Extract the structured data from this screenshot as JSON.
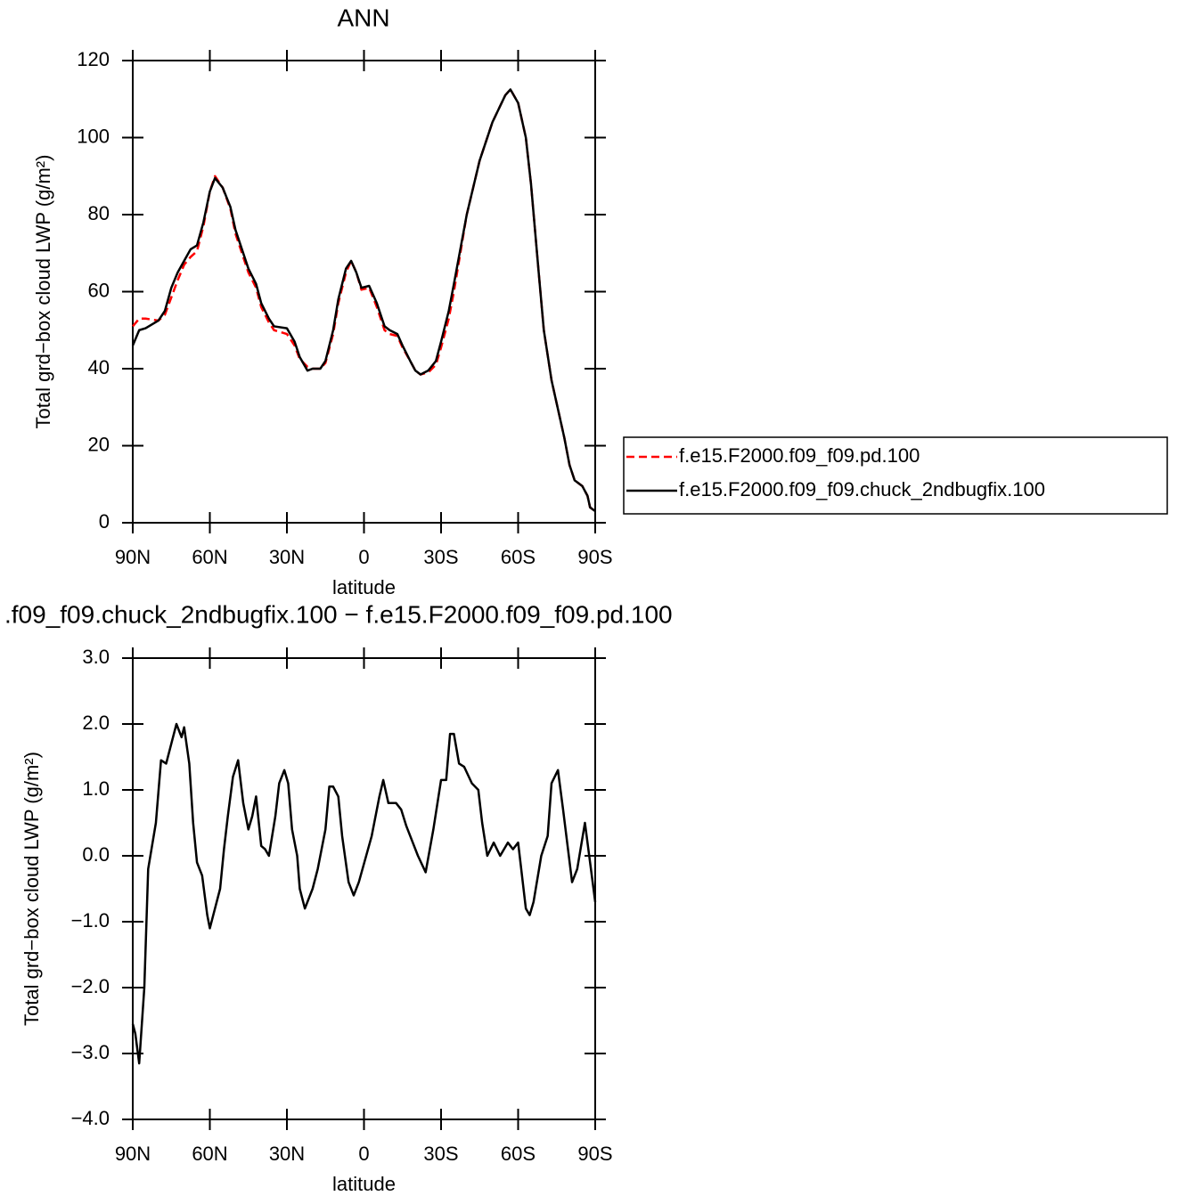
{
  "chart_data": [
    {
      "type": "line",
      "title": "ANN",
      "x_label": "latitude",
      "y_label": "Total grd−box cloud LWP (g/m²)",
      "x": [
        90,
        87.5,
        85,
        80,
        77.5,
        75,
        72.5,
        70,
        67.5,
        65,
        62.5,
        60,
        58,
        55,
        52,
        50,
        45,
        42,
        40,
        37,
        35,
        30,
        27,
        25,
        22,
        20,
        17,
        15,
        12,
        10,
        7,
        5,
        3,
        1,
        -2,
        -5,
        -8,
        -10,
        -13,
        -15,
        -18,
        -20,
        -22,
        -25,
        -28,
        -30,
        -33,
        -35,
        -40,
        -45,
        -50,
        -55,
        -57,
        -60,
        -63,
        -65,
        -68,
        -70,
        -73,
        -75,
        -78,
        -80,
        -82,
        -85,
        -87,
        -88,
        -90
      ],
      "series": [
        {
          "name": "f.e15.F2000.f09_f09.pd.100",
          "color": "#ff0000",
          "dashed": true,
          "values": [
            51,
            53,
            53,
            52.5,
            54,
            58.5,
            63,
            67,
            69,
            70.5,
            77,
            86,
            90,
            87,
            81.5,
            75,
            65,
            61,
            56,
            52,
            50,
            49,
            46,
            42.5,
            40.5,
            40,
            40,
            41.5,
            49,
            57,
            65,
            68,
            65,
            60.5,
            61,
            56,
            50,
            49,
            48.5,
            45.5,
            42,
            39.5,
            38.5,
            39,
            41,
            45.5,
            53,
            60,
            80,
            94,
            104,
            111,
            112.5,
            109,
            100,
            88,
            65,
            50,
            37,
            31,
            22,
            15,
            11,
            9.5,
            7,
            4,
            3
          ]
        },
        {
          "name": "f.e15.F2000.f09_f09.chuck_2ndbugfix.100",
          "color": "#000000",
          "dashed": false,
          "values": [
            46,
            50,
            50.5,
            52.5,
            55,
            61,
            65,
            68,
            71,
            72,
            78,
            86,
            89.5,
            87,
            82,
            76,
            66,
            62,
            57,
            53,
            51,
            50.5,
            47,
            43,
            39.5,
            40,
            40,
            42,
            50,
            58,
            66,
            68,
            65,
            61,
            61.5,
            57,
            51,
            50,
            49,
            46,
            42,
            39.5,
            38.5,
            39.5,
            42,
            47,
            55,
            62,
            80,
            94,
            104,
            111,
            112.5,
            109,
            100,
            88,
            65,
            50,
            37,
            31,
            22,
            15,
            11,
            9.5,
            7,
            4,
            3
          ]
        }
      ],
      "xlim": [
        90,
        -90
      ],
      "xticks": [
        {
          "value": 90,
          "label": "90N"
        },
        {
          "value": 60,
          "label": "60N"
        },
        {
          "value": 30,
          "label": "30N"
        },
        0,
        {
          "value": -30,
          "label": "30S"
        },
        {
          "value": -60,
          "label": "60S"
        },
        {
          "value": -90,
          "label": "90S"
        }
      ],
      "ylim": [
        0,
        120
      ],
      "yticks": [
        0,
        20,
        40,
        60,
        80,
        100,
        120
      ]
    },
    {
      "type": "line",
      "title": ".f09_f09.chuck_2ndbugfix.100 − f.e15.F2000.f09_f09.pd.100",
      "x_label": "latitude",
      "y_label": "Total grd−box cloud LWP (g/m²)",
      "x": [
        90,
        89,
        87.5,
        85.5,
        84,
        81,
        79,
        77,
        75,
        73,
        71,
        70,
        68,
        66.5,
        65,
        63,
        61,
        60,
        58,
        56,
        54.5,
        53,
        51,
        49,
        47,
        45,
        43.5,
        42,
        40,
        38.5,
        37,
        34.5,
        33,
        31,
        29.5,
        28,
        26,
        25,
        23,
        20,
        18,
        15,
        13.5,
        12,
        10,
        8.5,
        6,
        4,
        2,
        -3,
        -6,
        -7.5,
        -9.5,
        -12.5,
        -14.5,
        -16.5,
        -19,
        -21,
        -24,
        -27,
        -30,
        -32,
        -33.5,
        -35,
        -37,
        -39,
        -42,
        -44.5,
        -46,
        -48,
        -50.5,
        -53,
        -56,
        -58,
        -60,
        -63,
        -64.5,
        -66,
        -69,
        -71.5,
        -73,
        -75.5,
        -77.5,
        -81,
        -83,
        -86,
        -90
      ],
      "values": [
        -2.55,
        -2.7,
        -3.15,
        -2.0,
        -0.2,
        0.5,
        1.45,
        1.4,
        1.7,
        2.0,
        1.8,
        1.95,
        1.4,
        0.5,
        -0.1,
        -0.3,
        -0.9,
        -1.1,
        -0.8,
        -0.5,
        0.1,
        0.6,
        1.2,
        1.45,
        0.8,
        0.4,
        0.6,
        0.9,
        0.15,
        0.1,
        0.0,
        0.6,
        1.1,
        1.3,
        1.1,
        0.4,
        0.0,
        -0.5,
        -0.8,
        -0.5,
        -0.2,
        0.4,
        1.05,
        1.05,
        0.9,
        0.3,
        -0.4,
        -0.6,
        -0.4,
        0.3,
        0.9,
        1.15,
        0.8,
        0.8,
        0.7,
        0.45,
        0.2,
        0.0,
        -0.25,
        0.4,
        1.15,
        1.15,
        1.85,
        1.85,
        1.4,
        1.35,
        1.1,
        1.0,
        0.5,
        0.0,
        0.2,
        0.0,
        0.2,
        0.1,
        0.2,
        -0.8,
        -0.9,
        -0.7,
        0.0,
        0.3,
        1.1,
        1.3,
        0.7,
        -0.4,
        -0.2,
        0.5,
        -0.7
      ],
      "color": "#000000",
      "xlim": [
        90,
        -90
      ],
      "xticks": [
        {
          "value": 90,
          "label": "90N"
        },
        {
          "value": 60,
          "label": "60N"
        },
        {
          "value": 30,
          "label": "30N"
        },
        0,
        {
          "value": -30,
          "label": "30S"
        },
        {
          "value": -60,
          "label": "60S"
        },
        {
          "value": -90,
          "label": "90S"
        }
      ],
      "ylim": [
        -4,
        3
      ],
      "yticks": [
        {
          "value": -4,
          "label": "−4.0"
        },
        {
          "value": -3,
          "label": "−3.0"
        },
        {
          "value": -2,
          "label": "−2.0"
        },
        {
          "value": -1,
          "label": "−1.0"
        },
        {
          "value": 0,
          "label": "0.0"
        },
        {
          "value": 1,
          "label": "1.0"
        },
        {
          "value": 2,
          "label": "2.0"
        },
        {
          "value": 3,
          "label": "3.0"
        }
      ]
    }
  ]
}
